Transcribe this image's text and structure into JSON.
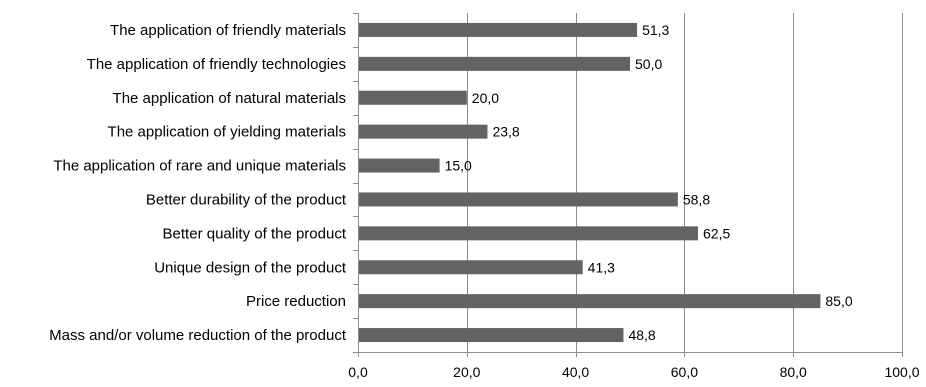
{
  "chart_data": {
    "type": "bar",
    "orientation": "horizontal",
    "categories": [
      "The application of friendly materials",
      "The application of friendly technologies",
      "The application of natural materials",
      "The application of yielding materials",
      "The application of rare and unique materials",
      "Better durability of the product",
      "Better quality of the product",
      "Unique design of the product",
      "Price reduction",
      "Mass and/or volume reduction of the product"
    ],
    "values": [
      51.3,
      50.0,
      20.0,
      23.8,
      15.0,
      58.8,
      62.5,
      41.3,
      85.0,
      48.8
    ],
    "value_labels": [
      "51,3",
      "50,0",
      "20,0",
      "23,8",
      "15,0",
      "58,8",
      "62,5",
      "41,3",
      "85,0",
      "48,8"
    ],
    "xlim": [
      0,
      100
    ],
    "xticks": [
      0,
      20,
      40,
      60,
      80,
      100
    ],
    "xtick_labels": [
      "0,0",
      "20,0",
      "40,0",
      "60,0",
      "80,0",
      "100,0"
    ],
    "title": "",
    "xlabel": "",
    "ylabel": "",
    "grid": "vertical",
    "legend": "none",
    "colors": {
      "bar": "#636363",
      "grid": "#8c8c8c",
      "axis": "#8c8c8c",
      "text": "#000000"
    }
  }
}
